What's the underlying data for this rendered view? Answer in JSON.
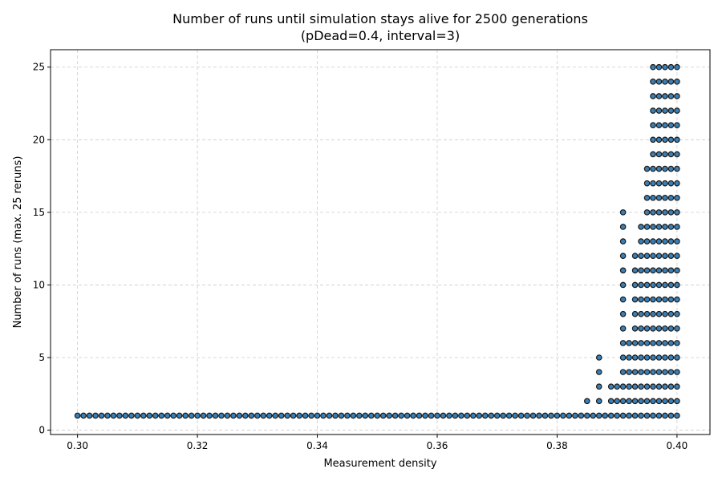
{
  "chart_data": {
    "type": "scatter",
    "title_line1": "Number of runs until simulation stays alive for 2500 generations",
    "title_line2": "(pDead=0.4, interval=3)",
    "xlabel": "Measurement density",
    "ylabel": "Number of runs (max. 25 reruns)",
    "xlim": [
      0.2955,
      0.4055
    ],
    "ylim": [
      -0.3,
      26.2
    ],
    "xticks": [
      0.3,
      0.32,
      0.34,
      0.36,
      0.38,
      0.4
    ],
    "xtick_labels": [
      "0.30",
      "0.32",
      "0.34",
      "0.36",
      "0.38",
      "0.40"
    ],
    "yticks": [
      0,
      5,
      10,
      15,
      20,
      25
    ],
    "ytick_labels": [
      "0",
      "5",
      "10",
      "15",
      "20",
      "25"
    ],
    "grid": true,
    "point_color": "#3a7fb5",
    "point_edge_color": "#1a1a1a",
    "x_step": 0.001,
    "baseline_y": 1,
    "baseline_x_range": [
      0.3,
      0.4
    ],
    "stacks": [
      {
        "x": 0.385,
        "max_y": 2
      },
      {
        "x": 0.387,
        "max_y": 5
      },
      {
        "x": 0.389,
        "max_y": 3
      },
      {
        "x": 0.39,
        "max_y": 3
      },
      {
        "x": 0.391,
        "max_y": 15
      },
      {
        "x": 0.392,
        "max_y": 6
      },
      {
        "x": 0.393,
        "max_y": 12
      },
      {
        "x": 0.394,
        "max_y": 14
      },
      {
        "x": 0.395,
        "max_y": 18
      },
      {
        "x": 0.396,
        "max_y": 25
      },
      {
        "x": 0.397,
        "max_y": 25
      },
      {
        "x": 0.398,
        "max_y": 25
      },
      {
        "x": 0.399,
        "max_y": 25
      },
      {
        "x": 0.4,
        "max_y": 25
      }
    ]
  }
}
